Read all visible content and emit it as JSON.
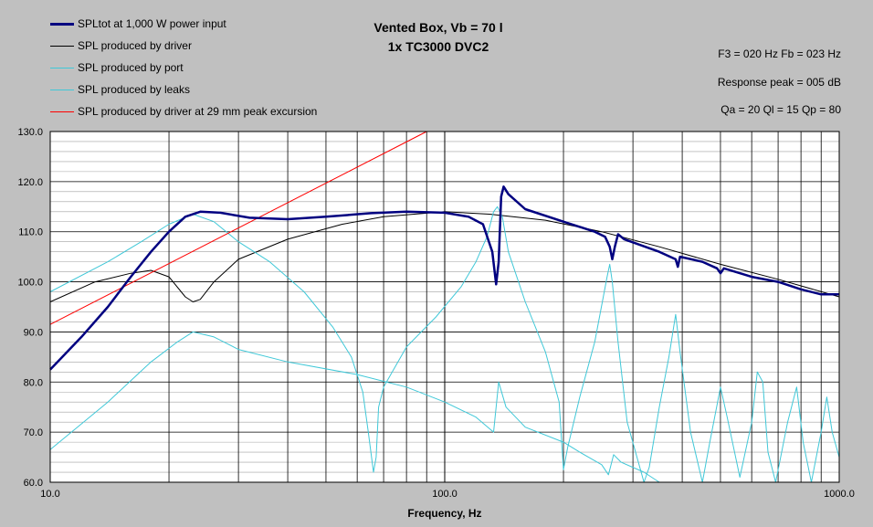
{
  "chart_data": {
    "type": "line",
    "title": "Vented Box, Vb = 70 l",
    "subtitle": "1x TC3000 DVC2",
    "xlabel": "Frequency, Hz",
    "ylabel": "",
    "xscale": "log",
    "xlim": [
      10,
      1000
    ],
    "ylim": [
      60,
      130
    ],
    "grid": true,
    "legend_position": "top-left",
    "x_ticks": [
      "10.0",
      "100.0",
      "1000.0"
    ],
    "y_ticks": [
      "60.0",
      "70.0",
      "80.0",
      "90.0",
      "100.0",
      "110.0",
      "120.0",
      "130.0"
    ],
    "info": [
      "F3 = 020 Hz  Fb = 023 Hz",
      "Response peak = 005 dB",
      "Qa = 20  Ql = 15  Qp = 80"
    ],
    "series": [
      {
        "name": "SPLtot at 1,000 W power input",
        "color": "#000080",
        "width": 2.5,
        "points": [
          [
            10,
            82.5
          ],
          [
            12,
            89
          ],
          [
            14,
            95
          ],
          [
            16,
            101
          ],
          [
            18,
            106
          ],
          [
            20,
            110
          ],
          [
            22,
            113
          ],
          [
            24,
            114
          ],
          [
            27,
            113.8
          ],
          [
            32,
            112.8
          ],
          [
            40,
            112.5
          ],
          [
            50,
            113
          ],
          [
            65,
            113.7
          ],
          [
            80,
            114
          ],
          [
            100,
            113.8
          ],
          [
            115,
            113
          ],
          [
            125,
            111.5
          ],
          [
            132,
            106
          ],
          [
            135,
            99.5
          ],
          [
            137,
            104
          ],
          [
            139,
            117
          ],
          [
            141,
            119
          ],
          [
            145,
            117.5
          ],
          [
            160,
            114.5
          ],
          [
            200,
            112
          ],
          [
            240,
            110
          ],
          [
            255,
            109
          ],
          [
            262,
            107
          ],
          [
            266,
            104.5
          ],
          [
            270,
            107
          ],
          [
            275,
            109.5
          ],
          [
            285,
            108.5
          ],
          [
            350,
            106
          ],
          [
            385,
            104.5
          ],
          [
            390,
            103
          ],
          [
            395,
            105
          ],
          [
            450,
            104
          ],
          [
            490,
            102.7
          ],
          [
            500,
            101.7
          ],
          [
            510,
            102.7
          ],
          [
            600,
            101
          ],
          [
            700,
            100
          ],
          [
            800,
            98.5
          ],
          [
            900,
            97.5
          ],
          [
            1000,
            97.5
          ]
        ]
      },
      {
        "name": "SPL produced by driver",
        "color": "#000000",
        "width": 1,
        "points": [
          [
            10,
            96
          ],
          [
            13,
            100
          ],
          [
            16,
            101.7
          ],
          [
            18,
            102.3
          ],
          [
            20,
            101
          ],
          [
            22,
            97
          ],
          [
            23,
            96
          ],
          [
            24,
            96.5
          ],
          [
            26,
            100
          ],
          [
            30,
            104.5
          ],
          [
            40,
            108.5
          ],
          [
            55,
            111.5
          ],
          [
            70,
            113
          ],
          [
            100,
            114
          ],
          [
            130,
            113.5
          ],
          [
            180,
            112.3
          ],
          [
            250,
            110
          ],
          [
            350,
            107
          ],
          [
            500,
            103.5
          ],
          [
            700,
            100.5
          ],
          [
            1000,
            97
          ]
        ]
      },
      {
        "name": "SPL produced by port",
        "color": "#40c8d8",
        "width": 1,
        "points": [
          [
            10,
            98
          ],
          [
            14,
            104
          ],
          [
            17,
            108
          ],
          [
            20,
            111.5
          ],
          [
            23,
            113.5
          ],
          [
            26,
            112
          ],
          [
            30,
            108
          ],
          [
            36,
            104
          ],
          [
            44,
            98
          ],
          [
            52,
            91
          ],
          [
            58,
            85
          ],
          [
            62,
            78
          ],
          [
            64,
            70
          ],
          [
            66,
            62
          ],
          [
            67,
            65
          ],
          [
            68,
            75
          ],
          [
            70,
            79
          ],
          [
            80,
            87
          ],
          [
            95,
            93
          ],
          [
            110,
            99
          ],
          [
            120,
            104
          ],
          [
            128,
            109
          ],
          [
            133,
            114
          ],
          [
            136,
            115
          ],
          [
            140,
            113
          ],
          [
            145,
            106
          ],
          [
            160,
            96
          ],
          [
            180,
            86
          ],
          [
            195,
            76
          ],
          [
            200,
            62.5
          ],
          [
            205,
            67
          ],
          [
            220,
            77
          ],
          [
            240,
            88
          ],
          [
            258,
            101
          ],
          [
            262,
            103.5
          ],
          [
            266,
            100
          ],
          [
            275,
            88
          ],
          [
            290,
            72
          ],
          [
            320,
            60
          ],
          [
            330,
            63
          ],
          [
            350,
            75
          ],
          [
            370,
            85
          ],
          [
            385,
            93.5
          ],
          [
            395,
            86
          ],
          [
            420,
            70
          ],
          [
            450,
            60
          ],
          [
            470,
            68
          ],
          [
            500,
            79
          ],
          [
            520,
            73
          ],
          [
            560,
            61
          ],
          [
            600,
            72
          ],
          [
            620,
            82
          ],
          [
            640,
            80
          ],
          [
            660,
            66
          ],
          [
            690,
            60
          ],
          [
            740,
            72
          ],
          [
            780,
            79
          ],
          [
            810,
            68
          ],
          [
            850,
            60
          ],
          [
            900,
            70
          ],
          [
            930,
            77
          ],
          [
            960,
            70
          ],
          [
            1000,
            65
          ]
        ]
      },
      {
        "name": "SPL produced by leaks",
        "color": "#40c8d8",
        "width": 1,
        "points": [
          [
            10,
            66.5
          ],
          [
            14,
            76
          ],
          [
            18,
            84
          ],
          [
            21,
            88
          ],
          [
            23,
            90
          ],
          [
            26,
            89
          ],
          [
            30,
            86.5
          ],
          [
            40,
            84
          ],
          [
            60,
            81.5
          ],
          [
            80,
            79
          ],
          [
            100,
            76
          ],
          [
            120,
            73
          ],
          [
            133,
            70
          ],
          [
            137,
            80
          ],
          [
            143,
            75
          ],
          [
            160,
            71
          ],
          [
            200,
            68
          ],
          [
            220,
            66
          ],
          [
            250,
            63.5
          ],
          [
            260,
            61.5
          ],
          [
            268,
            65.5
          ],
          [
            280,
            64
          ],
          [
            320,
            62
          ],
          [
            350,
            60
          ]
        ]
      },
      {
        "name": "SPL produced by driver at 29 mm peak excursion",
        "color": "#ff0000",
        "width": 1,
        "points": [
          [
            10,
            91.5
          ],
          [
            90,
            130
          ]
        ]
      }
    ]
  }
}
